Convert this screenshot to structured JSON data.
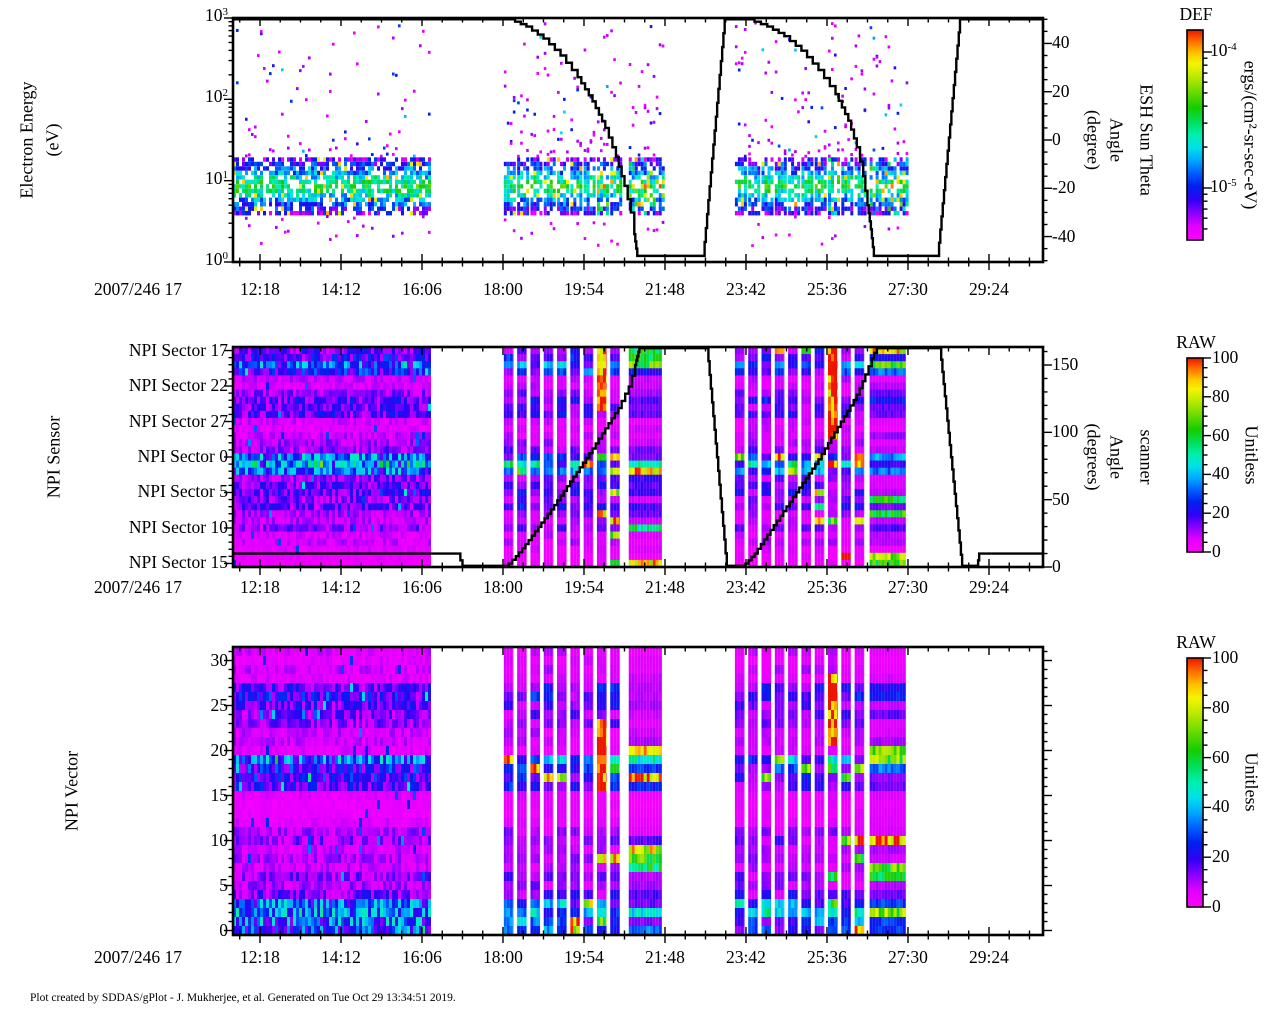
{
  "page": {
    "background": "#FFFFFF",
    "footer": "Plot created by SDDAS/gPlot - J. Mukherjee, et al.  Generated on Tue Oct 29 13:34:51 2019."
  },
  "colormap": {
    "stops": [
      [
        0,
        "#FF00FF"
      ],
      [
        0.07,
        "#DD00FF"
      ],
      [
        0.13,
        "#8800FF"
      ],
      [
        0.19,
        "#3300F5"
      ],
      [
        0.26,
        "#0022EE"
      ],
      [
        0.32,
        "#0060FF"
      ],
      [
        0.38,
        "#00A8FF"
      ],
      [
        0.44,
        "#00E0E8"
      ],
      [
        0.5,
        "#00EFB0"
      ],
      [
        0.56,
        "#00E060"
      ],
      [
        0.63,
        "#16CC00"
      ],
      [
        0.71,
        "#70DC00"
      ],
      [
        0.79,
        "#C8EC00"
      ],
      [
        0.84,
        "#F4F400"
      ],
      [
        0.89,
        "#FFC400"
      ],
      [
        0.94,
        "#FF7700"
      ],
      [
        1,
        "#EE1400"
      ]
    ],
    "line_color": "#000000"
  },
  "chart_data": [
    {
      "id": "electron-energy-spectrogram",
      "type": "heatmap",
      "x_axis": {
        "label": "2007/246 17",
        "range_hours": [
          11.667,
          30.667
        ],
        "major_tick_labels": [
          "12:18",
          "14:12",
          "16:06",
          "18:00",
          "19:54",
          "21:48",
          "23:42",
          "25:36",
          "27:30",
          "29:24"
        ],
        "major_tick_hours": [
          12.3,
          14.2,
          16.1,
          18.0,
          19.9,
          21.8,
          23.7,
          25.6,
          27.5,
          29.4
        ],
        "minor_divisions": 4
      },
      "y_axis": {
        "title_lines": [
          "Electron Energy",
          "(eV)"
        ],
        "scale": "log",
        "min": 1,
        "max": 1000,
        "ticks": [
          {
            "base": "10",
            "exp": "0"
          },
          {
            "base": "10",
            "exp": "1"
          },
          {
            "base": "10",
            "exp": "2"
          },
          {
            "base": "10",
            "exp": "3"
          }
        ]
      },
      "right_axis": {
        "title_lines": [
          "ESH Sun Theta",
          "Angle",
          "(degree)"
        ],
        "min": -50.5,
        "max": 50.5,
        "major_ticks": [
          40,
          20,
          0,
          -20,
          -40
        ],
        "minor_step": 5
      },
      "colorbar": {
        "title": "DEF",
        "unit": "ergs/(cm²-sr-sec-eV)",
        "scale": "log",
        "ticks": [
          {
            "base": "10",
            "exp": "-4"
          },
          {
            "base": "10",
            "exp": "-5"
          }
        ]
      },
      "line_series": {
        "name": "ESH Sun Theta Angle",
        "units": "degree",
        "style": "staircase",
        "points": [
          [
            11.667,
            50
          ],
          [
            18.15,
            50
          ],
          [
            18.55,
            47
          ],
          [
            18.95,
            42
          ],
          [
            19.35,
            35
          ],
          [
            19.75,
            26
          ],
          [
            20.1,
            16
          ],
          [
            20.4,
            5
          ],
          [
            20.65,
            -7
          ],
          [
            20.85,
            -19
          ],
          [
            21.0,
            -30
          ],
          [
            21.08,
            -39
          ],
          [
            21.15,
            -48
          ],
          [
            22.7,
            -48
          ],
          [
            23.2,
            50
          ],
          [
            23.75,
            50
          ],
          [
            24.2,
            47
          ],
          [
            24.6,
            43
          ],
          [
            25.0,
            37
          ],
          [
            25.4,
            29
          ],
          [
            25.8,
            19
          ],
          [
            26.1,
            8
          ],
          [
            26.3,
            -3
          ],
          [
            26.45,
            -15
          ],
          [
            26.55,
            -27
          ],
          [
            26.63,
            -37
          ],
          [
            26.7,
            -48
          ],
          [
            28.2,
            -48
          ],
          [
            28.72,
            50
          ],
          [
            30.667,
            50
          ]
        ]
      },
      "band": {
        "log_e_center": 0.93,
        "log_e_halfwidth": 0.33,
        "description": "dense 5-16 eV green/cyan band, sparse magenta-blue speckle up to 1000 eV"
      },
      "segments": [
        {
          "kind": "block",
          "start_hour": 11.667,
          "end_hour": 16.3
        },
        {
          "kind": "stripes",
          "start_hour": 18.02,
          "columns": 9,
          "pitch_hours": 0.312,
          "col_width_hours": 0.225,
          "end_block": [
            20.95,
            21.73
          ],
          "hot_column": 7
        },
        {
          "kind": "stripes",
          "start_hour": 23.44,
          "columns": 10,
          "pitch_hours": 0.312,
          "col_width_hours": 0.225,
          "end_block": [
            26.6,
            27.45
          ],
          "hot_column": 7
        }
      ]
    },
    {
      "id": "npi-sensor-heatmap",
      "type": "heatmap",
      "x_axis": {
        "label": "2007/246 17"
      },
      "y_axis": {
        "title": "NPI Sensor",
        "category_ticks": [
          "NPI Sector 17",
          "NPI Sector 22",
          "NPI Sector 27",
          "NPI Sector 0",
          "NPI Sector 5",
          "NPI Sector 10",
          "NPI Sector 15"
        ],
        "rows": 31,
        "labeled_row_indices": [
          0,
          5,
          10,
          15,
          20,
          25,
          30
        ]
      },
      "right_axis": {
        "title_lines": [
          "scanner",
          "Angle",
          "(degrees)"
        ],
        "min": 0,
        "max": 163,
        "major_ticks": [
          150,
          100,
          50,
          0
        ],
        "minor_step": 10
      },
      "colorbar": {
        "title": "RAW",
        "unit": "Unitless",
        "ticks": [
          100,
          80,
          60,
          40,
          20,
          0
        ]
      },
      "line_series": {
        "name": "scanner Angle",
        "units": "degrees",
        "style": "staircase",
        "points": [
          [
            11.667,
            10
          ],
          [
            16.95,
            10
          ],
          [
            17.05,
            0
          ],
          [
            18.05,
            0
          ],
          [
            18.3,
            8
          ],
          [
            18.6,
            20
          ],
          [
            18.9,
            33
          ],
          [
            19.2,
            46
          ],
          [
            19.5,
            60
          ],
          [
            19.8,
            74
          ],
          [
            20.1,
            88
          ],
          [
            20.4,
            103
          ],
          [
            20.7,
            118
          ],
          [
            20.95,
            134
          ],
          [
            21.1,
            150
          ],
          [
            21.2,
            163
          ],
          [
            22.79,
            163
          ],
          [
            23.25,
            0
          ],
          [
            23.62,
            0
          ],
          [
            23.9,
            10
          ],
          [
            24.2,
            24
          ],
          [
            24.5,
            38
          ],
          [
            24.8,
            52
          ],
          [
            25.1,
            66
          ],
          [
            25.4,
            80
          ],
          [
            25.7,
            96
          ],
          [
            26.0,
            112
          ],
          [
            26.3,
            128
          ],
          [
            26.5,
            143
          ],
          [
            26.65,
            155
          ],
          [
            26.77,
            163
          ],
          [
            28.25,
            163
          ],
          [
            28.77,
            0
          ],
          [
            29.12,
            0
          ],
          [
            29.17,
            10
          ],
          [
            30.667,
            10
          ]
        ]
      },
      "row_base_values": [
        14,
        17,
        27,
        20,
        7,
        6,
        10,
        15,
        13,
        15,
        6,
        5,
        7,
        9,
        11,
        28,
        33,
        27,
        11,
        13,
        15,
        11,
        14,
        9,
        8,
        11,
        6,
        7,
        5,
        4,
        3
      ],
      "hot_rows": [
        {
          "rows": [
            0,
            2
          ],
          "prob": 0.15,
          "min_col": 0
        },
        {
          "rows": [
            15,
            17
          ],
          "prob": 0.22,
          "min_col": 0
        },
        {
          "rows": [
            20,
            24
          ],
          "prob": 0.22,
          "min_col": 6
        },
        {
          "rows": [
            25,
            30
          ],
          "prob": 0.15,
          "min_col": 8
        }
      ],
      "segments": [
        {
          "kind": "block",
          "start_hour": 11.667,
          "end_hour": 16.3
        },
        {
          "kind": "stripes",
          "start_hour": 18.02,
          "columns": 9,
          "pitch_hours": 0.312,
          "col_width_hours": 0.225,
          "end_block": [
            20.95,
            21.73
          ],
          "hot_column": 7,
          "hot_column_rows": [
            0,
            8
          ]
        },
        {
          "kind": "stripes",
          "start_hour": 23.44,
          "columns": 10,
          "pitch_hours": 0.312,
          "col_width_hours": 0.225,
          "end_block": [
            26.6,
            27.45
          ],
          "hot_column": 7,
          "hot_column_rows": [
            0,
            12
          ]
        }
      ]
    },
    {
      "id": "npi-vector-heatmap",
      "type": "heatmap",
      "x_axis": {
        "label": "2007/246 17"
      },
      "y_axis": {
        "title": "NPI Vector",
        "min": 0,
        "max": 31,
        "major_ticks": [
          30,
          25,
          20,
          15,
          10,
          5,
          0
        ],
        "minor_step": 1,
        "rows": 32
      },
      "colorbar": {
        "title": "RAW",
        "unit": "Unitless",
        "ticks": [
          100,
          80,
          60,
          40,
          20,
          0
        ]
      },
      "row_base_values": [
        6,
        5,
        7,
        5,
        15,
        17,
        15,
        13,
        11,
        7,
        7,
        5,
        28,
        20,
        18,
        16,
        5,
        4,
        4,
        5,
        9,
        11,
        7,
        9,
        7,
        11,
        9,
        13,
        28,
        32,
        28,
        24
      ],
      "hot_rows": [
        {
          "rows": [
            11,
            14
          ],
          "prob": 0.12,
          "min_col": 0
        },
        {
          "rows": [
            21,
            25
          ],
          "prob": 0.28,
          "min_col": 7
        },
        {
          "rows": [
            28,
            31
          ],
          "prob": 0.18,
          "min_col": 5
        }
      ],
      "segments": [
        {
          "kind": "block",
          "start_hour": 11.667,
          "end_hour": 16.3
        },
        {
          "kind": "stripes",
          "start_hour": 18.02,
          "columns": 9,
          "pitch_hours": 0.312,
          "col_width_hours": 0.225,
          "end_block": [
            20.95,
            21.73
          ],
          "hot_column": 7,
          "hot_column_rows": [
            8,
            15
          ]
        },
        {
          "kind": "stripes",
          "start_hour": 23.44,
          "columns": 10,
          "pitch_hours": 0.312,
          "col_width_hours": 0.225,
          "end_block": [
            26.6,
            27.45
          ],
          "hot_column": 7,
          "hot_column_rows": [
            3,
            10
          ]
        }
      ]
    }
  ]
}
